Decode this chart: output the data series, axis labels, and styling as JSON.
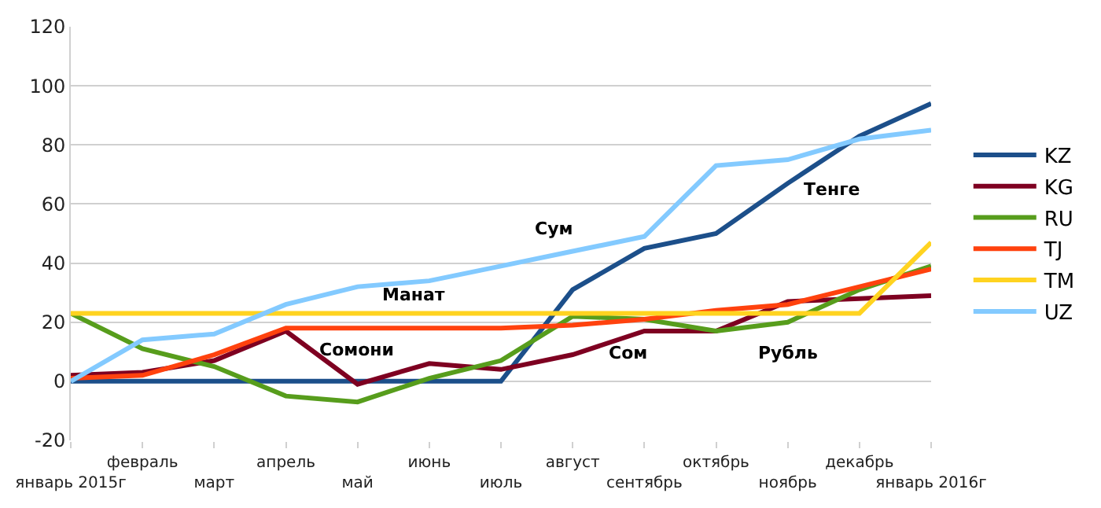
{
  "chart_data": {
    "type": "line",
    "categories": [
      "январь 2015г",
      "февраль",
      "март",
      "апрель",
      "май",
      "июнь",
      "июль",
      "август",
      "сентябрь",
      "октябрь",
      "ноябрь",
      "декабрь",
      "январь 2016г"
    ],
    "series": [
      {
        "name": "KZ",
        "color": "#1c4f8a",
        "values": [
          0,
          0,
          0,
          0,
          0,
          0,
          0,
          31,
          45,
          50,
          67,
          83,
          94
        ]
      },
      {
        "name": "KG",
        "color": "#7e0021",
        "values": [
          2,
          3,
          7,
          17,
          -1,
          6,
          4,
          9,
          17,
          17,
          27,
          28,
          29
        ]
      },
      {
        "name": "RU",
        "color": "#579d1c",
        "values": [
          23,
          11,
          5,
          -5,
          -7,
          1,
          7,
          22,
          21,
          17,
          20,
          31,
          39
        ]
      },
      {
        "name": "TJ",
        "color": "#ff420e",
        "values": [
          1,
          2,
          9,
          18,
          18,
          18,
          18,
          19,
          21,
          24,
          26,
          32,
          38
        ]
      },
      {
        "name": "TM",
        "color": "#ffd320",
        "values": [
          23,
          23,
          23,
          23,
          23,
          23,
          23,
          23,
          23,
          23,
          23,
          23,
          47
        ]
      },
      {
        "name": "UZ",
        "color": "#83caff",
        "values": [
          0,
          14,
          16,
          26,
          32,
          34,
          39,
          44,
          49,
          73,
          75,
          82,
          85
        ]
      }
    ],
    "annotations": [
      {
        "text": "Манат",
        "x": "июнь",
        "y": 23
      },
      {
        "text": "Сомони",
        "x": "май",
        "y": 18
      },
      {
        "text": "Сум",
        "x": "август",
        "y": 44
      },
      {
        "text": "Тенге",
        "x": "ноябрь",
        "y": 67
      },
      {
        "text": "Сом",
        "x": "сентябрь",
        "y": 17
      },
      {
        "text": "Рубль",
        "x": "ноябрь",
        "y": 20
      }
    ],
    "ylim": [
      -20,
      120
    ],
    "yticks": [
      -20,
      0,
      20,
      40,
      60,
      80,
      100,
      120
    ],
    "grid": "y",
    "legend": "right",
    "marker": "none",
    "line_style": "solid"
  }
}
